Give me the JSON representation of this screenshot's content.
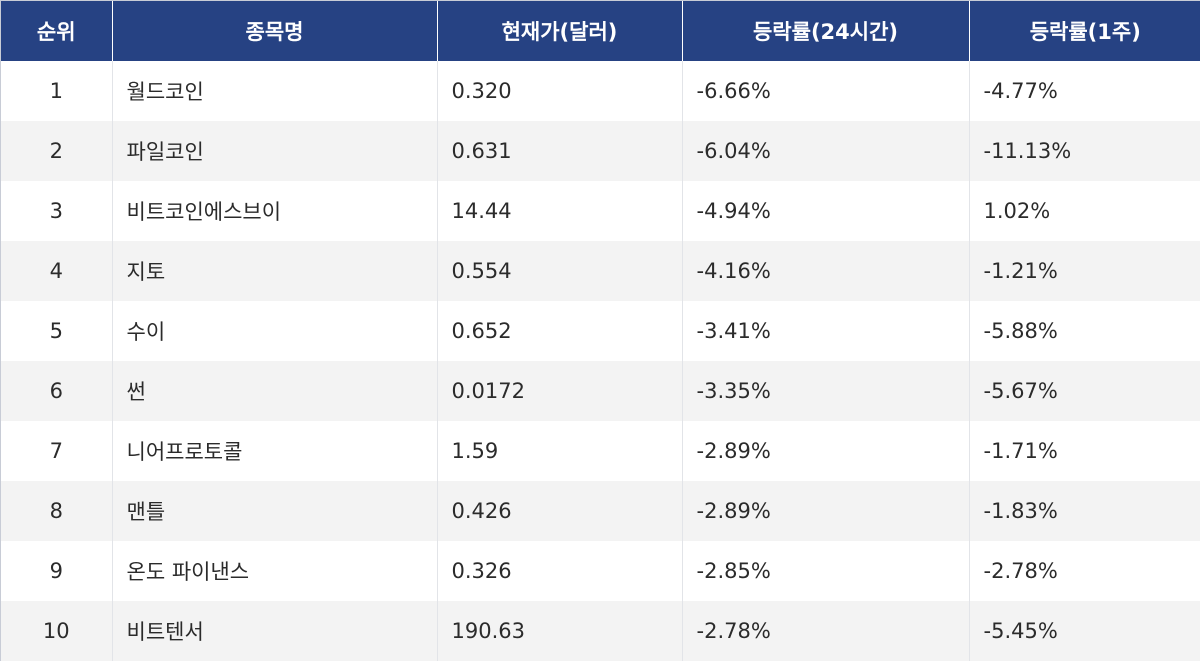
{
  "table": {
    "headers": [
      "순위",
      "종목명",
      "현재가(달러)",
      "등락률(24시간)",
      "등락률(1주)"
    ],
    "rows": [
      {
        "rank": "1",
        "name": "월드코인",
        "price": "0.320",
        "change_24h": "-6.66%",
        "change_1w": "-4.77%"
      },
      {
        "rank": "2",
        "name": "파일코인",
        "price": "0.631",
        "change_24h": "-6.04%",
        "change_1w": "-11.13%"
      },
      {
        "rank": "3",
        "name": "비트코인에스브이",
        "price": "14.44",
        "change_24h": "-4.94%",
        "change_1w": "1.02%"
      },
      {
        "rank": "4",
        "name": "지토",
        "price": "0.554",
        "change_24h": "-4.16%",
        "change_1w": "-1.21%"
      },
      {
        "rank": "5",
        "name": "수이",
        "price": "0.652",
        "change_24h": "-3.41%",
        "change_1w": "-5.88%"
      },
      {
        "rank": "6",
        "name": "썬",
        "price": "0.0172",
        "change_24h": "-3.35%",
        "change_1w": "-5.67%"
      },
      {
        "rank": "7",
        "name": "니어프로토콜",
        "price": "1.59",
        "change_24h": "-2.89%",
        "change_1w": "-1.71%"
      },
      {
        "rank": "8",
        "name": "맨틀",
        "price": "0.426",
        "change_24h": "-2.89%",
        "change_1w": "-1.83%"
      },
      {
        "rank": "9",
        "name": "온도 파이낸스",
        "price": "0.326",
        "change_24h": "-2.85%",
        "change_1w": "-2.78%"
      },
      {
        "rank": "10",
        "name": "비트텐서",
        "price": "190.63",
        "change_24h": "-2.78%",
        "change_1w": "-5.45%"
      }
    ]
  },
  "colors": {
    "header_bg": "#264283",
    "header_text": "#ffffff",
    "row_alt_bg": "#f3f3f3",
    "text": "#2b2b2b"
  }
}
